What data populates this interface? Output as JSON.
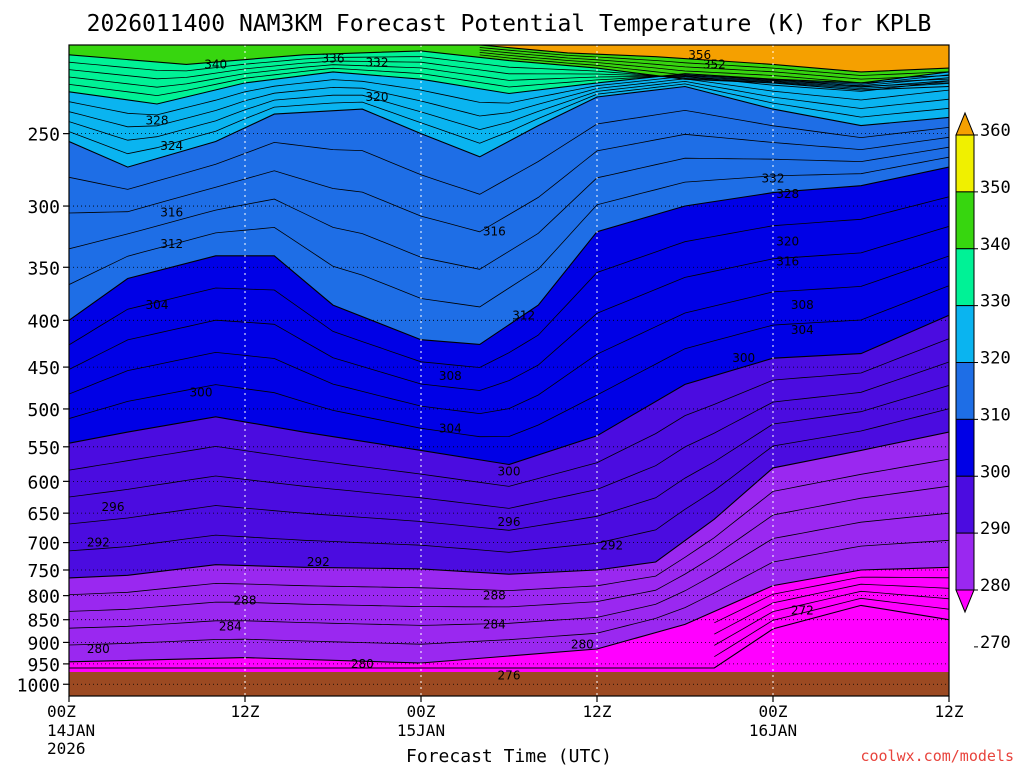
{
  "chart_data": {
    "type": "time-height contour (filled)",
    "title": "2026011400 NAM3KM Forecast Potential Temperature (K) for KPLB",
    "xlabel": "Forecast Time (UTC)",
    "ylabel": "",
    "credit": "coolwx.com/models",
    "x_ticks": [
      {
        "label": "00Z",
        "sub1": "14JAN",
        "sub2": "2026",
        "hour": 0
      },
      {
        "label": "12Z",
        "sub1": "",
        "sub2": "",
        "hour": 12
      },
      {
        "label": "00Z",
        "sub1": "15JAN",
        "sub2": "",
        "hour": 24
      },
      {
        "label": "12Z",
        "sub1": "",
        "sub2": "",
        "hour": 36
      },
      {
        "label": "00Z",
        "sub1": "16JAN",
        "sub2": "",
        "hour": 48
      },
      {
        "label": "12Z",
        "sub1": "",
        "sub2": "",
        "hour": 60
      }
    ],
    "xlim": [
      0,
      60
    ],
    "y_ticks": [
      250,
      300,
      350,
      400,
      450,
      500,
      550,
      600,
      650,
      700,
      750,
      800,
      850,
      900,
      950,
      1000
    ],
    "ylim": [
      200,
      1030
    ],
    "y_scale": "log-pressure (hPa)",
    "colorbar": {
      "labels": [
        360,
        350,
        340,
        330,
        320,
        310,
        300,
        290,
        280,
        270
      ],
      "levels": [
        270,
        280,
        290,
        300,
        310,
        320,
        330,
        340,
        350,
        360
      ],
      "colors": [
        "#ff00ff",
        "#9a28f0",
        "#4b0ce0",
        "#0000e6",
        "#1e6ee6",
        "#0ab4f0",
        "#00f296",
        "#37d60f",
        "#f0f000",
        "#f5a000"
      ]
    },
    "series": [
      {
        "name": "theta_270",
        "hour": [
          44,
          48,
          54,
          60
        ],
        "pressure": [
          960,
          870,
          820,
          850
        ]
      },
      {
        "name": "theta_280",
        "hour": [
          0,
          12,
          24,
          36,
          42,
          48,
          54,
          60
        ],
        "pressure": [
          945,
          935,
          948,
          915,
          860,
          780,
          750,
          745
        ]
      },
      {
        "name": "theta_290",
        "hour": [
          0,
          4,
          10,
          16,
          24,
          30,
          36,
          40,
          44,
          48,
          54,
          60
        ],
        "pressure": [
          765,
          760,
          740,
          745,
          748,
          758,
          750,
          735,
          660,
          580,
          555,
          530
        ]
      },
      {
        "name": "theta_300",
        "hour": [
          0,
          4,
          10,
          16,
          24,
          30,
          36,
          42,
          48,
          54,
          60
        ],
        "pressure": [
          545,
          530,
          510,
          530,
          555,
          575,
          535,
          470,
          440,
          435,
          395
        ]
      },
      {
        "name": "theta_310",
        "hour": [
          0,
          4,
          10,
          14,
          18,
          24,
          28,
          32,
          36,
          42,
          48,
          54,
          60
        ],
        "pressure": [
          400,
          360,
          340,
          340,
          385,
          420,
          425,
          385,
          320,
          300,
          290,
          285,
          272
        ]
      },
      {
        "name": "theta_320",
        "hour": [
          0,
          4,
          10,
          14,
          20,
          24,
          28,
          32,
          36,
          42,
          48,
          54,
          60
        ],
        "pressure": [
          255,
          272,
          255,
          238,
          235,
          250,
          265,
          245,
          228,
          222,
          235,
          245,
          240
        ]
      },
      {
        "name": "theta_330",
        "hour": [
          0,
          6,
          12,
          18,
          24,
          30,
          36,
          42,
          48,
          54,
          60
        ],
        "pressure": [
          225,
          232,
          220,
          214,
          218,
          226,
          220,
          215,
          218,
          220,
          214
        ]
      },
      {
        "name": "theta_340",
        "hour": [
          0,
          8,
          16,
          24,
          30,
          36,
          42,
          48,
          54,
          60
        ],
        "pressure": [
          205,
          210,
          205,
          203,
          208,
          212,
          218,
          220,
          224,
          222
        ]
      },
      {
        "name": "theta_350",
        "hour": [
          28,
          34,
          40,
          48,
          54,
          60
        ],
        "pressure": [
          200,
          204,
          206,
          210,
          214,
          212
        ]
      }
    ],
    "contour_labels": [
      {
        "text": "340",
        "hour": 10,
        "pressure": 210
      },
      {
        "text": "336",
        "hour": 18,
        "pressure": 207
      },
      {
        "text": "332",
        "hour": 21,
        "pressure": 209
      },
      {
        "text": "356",
        "hour": 43,
        "pressure": 205
      },
      {
        "text": "352",
        "hour": 44,
        "pressure": 210
      },
      {
        "text": "320",
        "hour": 21,
        "pressure": 228
      },
      {
        "text": "328",
        "hour": 6,
        "pressure": 242
      },
      {
        "text": "324",
        "hour": 7,
        "pressure": 258
      },
      {
        "text": "332",
        "hour": 48,
        "pressure": 280
      },
      {
        "text": "328",
        "hour": 49,
        "pressure": 291
      },
      {
        "text": "316",
        "hour": 7,
        "pressure": 305
      },
      {
        "text": "316",
        "hour": 29,
        "pressure": 320
      },
      {
        "text": "320",
        "hour": 49,
        "pressure": 328
      },
      {
        "text": "312",
        "hour": 7,
        "pressure": 330
      },
      {
        "text": "316",
        "hour": 49,
        "pressure": 345
      },
      {
        "text": "304",
        "hour": 6,
        "pressure": 385
      },
      {
        "text": "312",
        "hour": 31,
        "pressure": 395
      },
      {
        "text": "308",
        "hour": 50,
        "pressure": 385
      },
      {
        "text": "304",
        "hour": 50,
        "pressure": 410
      },
      {
        "text": "300",
        "hour": 9,
        "pressure": 480
      },
      {
        "text": "308",
        "hour": 26,
        "pressure": 460
      },
      {
        "text": "300",
        "hour": 46,
        "pressure": 440
      },
      {
        "text": "304",
        "hour": 26,
        "pressure": 525
      },
      {
        "text": "300",
        "hour": 30,
        "pressure": 585
      },
      {
        "text": "296",
        "hour": 3,
        "pressure": 640
      },
      {
        "text": "296",
        "hour": 30,
        "pressure": 665
      },
      {
        "text": "292",
        "hour": 2,
        "pressure": 700
      },
      {
        "text": "292",
        "hour": 17,
        "pressure": 735
      },
      {
        "text": "292",
        "hour": 37,
        "pressure": 705
      },
      {
        "text": "288",
        "hour": 12,
        "pressure": 810
      },
      {
        "text": "288",
        "hour": 29,
        "pressure": 800
      },
      {
        "text": "272",
        "hour": 50,
        "pressure": 830
      },
      {
        "text": "284",
        "hour": 11,
        "pressure": 865
      },
      {
        "text": "284",
        "hour": 29,
        "pressure": 860
      },
      {
        "text": "280",
        "hour": 2,
        "pressure": 915
      },
      {
        "text": "280",
        "hour": 35,
        "pressure": 905
      },
      {
        "text": "280",
        "hour": 20,
        "pressure": 950
      },
      {
        "text": "276",
        "hour": 30,
        "pressure": 978
      }
    ]
  }
}
